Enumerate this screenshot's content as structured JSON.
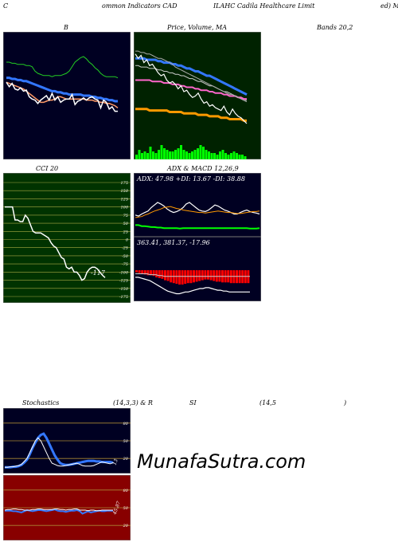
{
  "header": {
    "left": "C",
    "mid1": "ommon Indicators CAD",
    "mid2": "ILAHC Cadila Healthcare Limit",
    "right": "ed) M"
  },
  "titles": {
    "bollinger_b": "B",
    "price_volume_ma": "Price, Volume, MA",
    "bands": "Bands 20,2",
    "cci": "CCI 20",
    "adx_macd": "ADX  & MACD 12,26,9",
    "stoch_1": "Stochastics",
    "stoch_2": "(14,3,3) & R",
    "stoch_3": "SI",
    "stoch_4": "(14,5",
    "stoch_5": ")"
  },
  "adx_readout": "ADX: 47.98  +DI: 13.67 -DI: 38.88",
  "macd_readout": "363.41,  381.37,  -17.96",
  "cci_value": "-117",
  "stoch_value": "13",
  "rsi_value": "45.87",
  "brand": "MunafaSutra.com",
  "colors": {
    "panel_bg": "#000022",
    "price_bg": "#002200",
    "cci_bg": "#003300",
    "rsi_bg": "#880000",
    "blue": "#3377ff",
    "orange": "#ff9900",
    "green": "#00ff00",
    "red": "#ff0000"
  },
  "chart_data": [
    {
      "panel": "bollinger",
      "type": "line",
      "series": [
        {
          "values": [
            80,
            80,
            79,
            79,
            78,
            78,
            78,
            77,
            77,
            76,
            72,
            70,
            69,
            68,
            68,
            68,
            67,
            68,
            68,
            68,
            69,
            70,
            72,
            76,
            80,
            82,
            84,
            85,
            83,
            80,
            78,
            75,
            73,
            70,
            68,
            67,
            67,
            67,
            67,
            66
          ],
          "color": "#22cc22"
        },
        {
          "values": [
            66,
            66,
            65,
            65,
            64,
            64,
            63,
            63,
            62,
            61,
            60,
            59,
            58,
            57,
            56,
            55,
            54,
            54,
            53,
            53,
            52,
            52,
            51,
            51,
            51,
            51,
            51,
            50,
            50,
            50,
            49,
            49,
            48,
            48,
            47,
            47,
            46,
            46,
            45,
            45
          ],
          "color": "#3377ff"
        },
        {
          "values": [
            62,
            61,
            60,
            59,
            58,
            57,
            56,
            54,
            52,
            50,
            48,
            46,
            44,
            44,
            45,
            46,
            46,
            47,
            49,
            49,
            48,
            47,
            47,
            47,
            47,
            47,
            47,
            47,
            46,
            46,
            46,
            45,
            45,
            44,
            44,
            43,
            43,
            42,
            41,
            39
          ],
          "color": "#ff9966"
        },
        {
          "values": [
            62,
            58,
            61,
            56,
            55,
            57,
            54,
            55,
            49,
            47,
            46,
            43,
            46,
            48,
            50,
            46,
            52,
            46,
            49,
            44,
            46,
            47,
            47,
            51,
            42,
            45,
            46,
            48,
            46,
            48,
            49,
            47,
            46,
            39,
            46,
            44,
            38,
            40,
            36,
            36
          ],
          "color": "#ffffff"
        }
      ]
    },
    {
      "panel": "price-volume",
      "type": "line",
      "series": [
        {
          "values": [
            10,
            10,
            10,
            10,
            10,
            9,
            9,
            9,
            9,
            9,
            9,
            9,
            8,
            8,
            8,
            8,
            8,
            7,
            7,
            7,
            7,
            7,
            6,
            6,
            6,
            6,
            5,
            5,
            5,
            5,
            4,
            4,
            4,
            3,
            3,
            3,
            3,
            3,
            2,
            2
          ],
          "color": "#ff9900"
        },
        {
          "values": [
            30,
            30,
            30,
            30,
            30,
            30,
            29,
            29,
            29,
            29,
            28,
            28,
            28,
            27,
            27,
            27,
            26,
            26,
            25,
            25,
            25,
            24,
            24,
            23,
            23,
            23,
            22,
            22,
            21,
            21,
            21,
            20,
            20,
            19,
            19,
            19,
            18,
            18,
            17,
            17
          ],
          "color": "#ff66cc"
        },
        {
          "values": [
            45,
            45,
            45,
            45,
            44,
            44,
            44,
            44,
            43,
            43,
            42,
            42,
            42,
            41,
            41,
            40,
            40,
            39,
            38,
            38,
            37,
            36,
            36,
            35,
            34,
            33,
            33,
            32,
            31,
            30,
            29,
            28,
            27,
            26,
            25,
            24,
            23,
            22,
            21,
            20
          ],
          "color": "#3377ff"
        },
        {
          "values": [
            40,
            40,
            39,
            39,
            39,
            38,
            38,
            38,
            37,
            37,
            36,
            36,
            35,
            35,
            34,
            34,
            33,
            33,
            32,
            31,
            31,
            30,
            29,
            29,
            28,
            27,
            26,
            26,
            25,
            24,
            23,
            22,
            22,
            21,
            20,
            19,
            18,
            17,
            16,
            16
          ],
          "color": "#cccccc"
        },
        {
          "values": [
            50,
            50,
            49,
            49,
            48,
            48,
            47,
            46,
            45,
            45,
            44,
            43,
            42,
            41,
            39,
            38,
            37,
            36,
            35,
            34,
            33,
            32,
            31,
            30,
            29,
            28,
            27,
            26,
            25,
            24,
            23,
            22,
            21,
            20,
            20,
            19,
            18,
            17,
            16,
            15
          ],
          "color": "#aaaaaa"
        },
        {
          "values": [
            48,
            45,
            47,
            42,
            44,
            40,
            41,
            38,
            35,
            33,
            34,
            30,
            28,
            29,
            27,
            24,
            26,
            22,
            23,
            20,
            18,
            19,
            21,
            17,
            14,
            15,
            12,
            13,
            11,
            10,
            9,
            12,
            8,
            6,
            10,
            7,
            5,
            4,
            2,
            0
          ],
          "color": "#ffffff"
        }
      ],
      "volume": [
        3,
        6,
        4,
        5,
        4,
        8,
        5,
        4,
        6,
        9,
        7,
        6,
        5,
        5,
        6,
        7,
        9,
        6,
        5,
        4,
        5,
        6,
        7,
        9,
        8,
        6,
        5,
        4,
        4,
        3,
        5,
        6,
        4,
        3,
        4,
        5,
        4,
        3,
        3,
        2
      ]
    },
    {
      "panel": "cci",
      "type": "line",
      "ylim": [
        -175,
        175
      ],
      "ticks": [
        175,
        150,
        125,
        100,
        75,
        50,
        25,
        0,
        -25,
        -50,
        -75,
        -100,
        -125,
        -150,
        -175
      ],
      "series": [
        {
          "values": [
            100,
            100,
            100,
            100,
            60,
            60,
            55,
            55,
            75,
            65,
            45,
            25,
            20,
            20,
            20,
            15,
            10,
            5,
            -10,
            -20,
            -25,
            -40,
            -55,
            -60,
            -85,
            -90,
            -85,
            -100,
            -100,
            -110,
            -125,
            -120,
            -100,
            -90,
            -85,
            -85,
            -90,
            -100,
            -110,
            -117
          ],
          "color": "#ffffff"
        }
      ]
    },
    {
      "panel": "adx",
      "type": "line",
      "series": [
        {
          "values": [
            40,
            38,
            42,
            45,
            48,
            55,
            60,
            65,
            62,
            58,
            52,
            48,
            45,
            47,
            50,
            55,
            62,
            65,
            60,
            55,
            50,
            48,
            47,
            50,
            55,
            60,
            58,
            54,
            50,
            48,
            45,
            42,
            42,
            45,
            48,
            50,
            47,
            45,
            44,
            42
          ],
          "color": "#ffffff"
        },
        {
          "values": [
            35,
            36,
            37,
            40,
            42,
            45,
            48,
            50,
            52,
            55,
            56,
            57,
            55,
            53,
            52,
            50,
            49,
            48,
            47,
            46,
            45,
            45,
            44,
            45,
            46,
            47,
            48,
            47,
            46,
            45,
            45,
            44,
            43,
            43,
            44,
            45,
            46,
            47,
            47,
            48
          ],
          "color": "#ff9900"
        },
        {
          "values": [
            20,
            20,
            18,
            18,
            17,
            16,
            16,
            15,
            15,
            14,
            14,
            14,
            14,
            14,
            13,
            14,
            14,
            14,
            14,
            14,
            14,
            14,
            14,
            14,
            14,
            14,
            14,
            14,
            14,
            14,
            14,
            14,
            14,
            14,
            14,
            14,
            13,
            13,
            13,
            14
          ],
          "color": "#00ff00"
        }
      ]
    },
    {
      "panel": "macd",
      "type": "bar",
      "series": [
        {
          "name": "MACD",
          "values": [
            380,
            380,
            379,
            378,
            377,
            376,
            374,
            372,
            370,
            368,
            366,
            364,
            363,
            362,
            361,
            361,
            362,
            363,
            363,
            364,
            365,
            366,
            367,
            367,
            368,
            368,
            367,
            366,
            365,
            365,
            364,
            364,
            363,
            363,
            363,
            363,
            363,
            363,
            363,
            363
          ],
          "color": "#ffffff"
        },
        {
          "name": "Signal",
          "values": [
            384,
            384,
            384,
            384,
            384,
            383,
            383,
            383,
            382,
            382,
            381,
            381,
            381,
            381,
            381,
            381,
            381,
            381,
            381,
            381,
            381,
            381,
            381,
            381,
            381,
            381,
            381,
            381,
            381,
            381,
            381,
            381,
            381,
            381,
            381,
            381,
            381,
            381,
            381,
            381
          ],
          "color": "#cccccc"
        },
        {
          "name": "Histogram",
          "values": [
            -3,
            -4,
            -5,
            -6,
            -7,
            -7,
            -8,
            -10,
            -11,
            -12,
            -14,
            -15,
            -17,
            -18,
            -19,
            -20,
            -20,
            -19,
            -18,
            -18,
            -17,
            -16,
            -15,
            -14,
            -13,
            -13,
            -14,
            -15,
            -16,
            -16,
            -17,
            -17,
            -17,
            -18,
            -18,
            -18,
            -18,
            -18,
            -18,
            -18
          ],
          "color": "#ff0000"
        }
      ]
    },
    {
      "panel": "stochastics",
      "type": "line",
      "ylim": [
        0,
        100
      ],
      "ticks": [
        80,
        50,
        20
      ],
      "series": [
        {
          "values": [
            5,
            5,
            6,
            6,
            7,
            8,
            10,
            15,
            20,
            30,
            40,
            50,
            55,
            50,
            40,
            30,
            20,
            12,
            10,
            8,
            7,
            7,
            8,
            9,
            10,
            11,
            12,
            10,
            8,
            7,
            7,
            7,
            8,
            10,
            12,
            14,
            13,
            12,
            11,
            13
          ],
          "color": "#ffffff"
        },
        {
          "values": [
            5,
            5,
            5,
            6,
            6,
            7,
            9,
            13,
            18,
            27,
            38,
            47,
            55,
            60,
            62,
            55,
            45,
            35,
            25,
            18,
            12,
            10,
            9,
            9,
            10,
            11,
            12,
            13,
            14,
            15,
            16,
            16,
            16,
            15,
            15,
            14,
            14,
            14,
            14,
            13
          ],
          "color": "#3377ff"
        }
      ]
    },
    {
      "panel": "rsi",
      "type": "line",
      "ylim": [
        0,
        100
      ],
      "ticks": [
        80,
        50,
        20
      ],
      "series": [
        {
          "values": [
            46,
            47,
            47,
            48,
            48,
            47,
            47,
            46,
            46,
            46,
            47,
            47,
            48,
            48,
            47,
            47,
            47,
            47,
            48,
            48,
            47,
            47,
            46,
            47,
            47,
            48,
            48,
            46,
            46,
            46,
            45,
            46,
            46,
            45,
            45,
            46,
            46,
            46,
            46,
            46
          ],
          "color": "#ffffff"
        },
        {
          "values": [
            45,
            45,
            45,
            44,
            44,
            43,
            42,
            44,
            46,
            45,
            44,
            45,
            46,
            46,
            45,
            44,
            45,
            46,
            47,
            45,
            44,
            44,
            43,
            44,
            45,
            45,
            46,
            44,
            40,
            42,
            44,
            42,
            43,
            44,
            45,
            44,
            44,
            45,
            45,
            45
          ],
          "color": "#3377ff"
        }
      ]
    }
  ]
}
